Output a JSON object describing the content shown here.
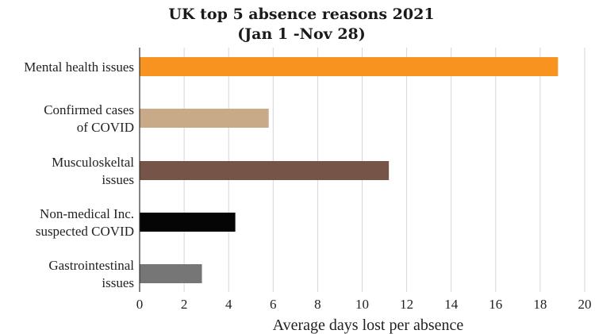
{
  "chart_data": {
    "type": "bar",
    "orientation": "horizontal",
    "title": "UK top 5 absence reasons 2021",
    "subtitle": "(Jan 1 -Nov 28)",
    "xlabel": "Average days lost per absence",
    "ylabel": "",
    "xlim": [
      0,
      20
    ],
    "x_ticks": [
      0,
      2,
      4,
      6,
      8,
      10,
      12,
      14,
      16,
      18,
      20
    ],
    "grid": "vertical",
    "categories": [
      [
        "Mental health issues"
      ],
      [
        "Confirmed cases",
        "of COVID"
      ],
      [
        "Musculoskeltal",
        "issues"
      ],
      [
        "Non-medical Inc.",
        "suspected COVID"
      ],
      [
        "Gastrointestinal",
        "issues"
      ]
    ],
    "values": [
      18.8,
      5.8,
      11.2,
      4.3,
      2.8
    ],
    "colors": [
      "#f7931e",
      "#c8aa88",
      "#765448",
      "#050505",
      "#767676"
    ]
  }
}
